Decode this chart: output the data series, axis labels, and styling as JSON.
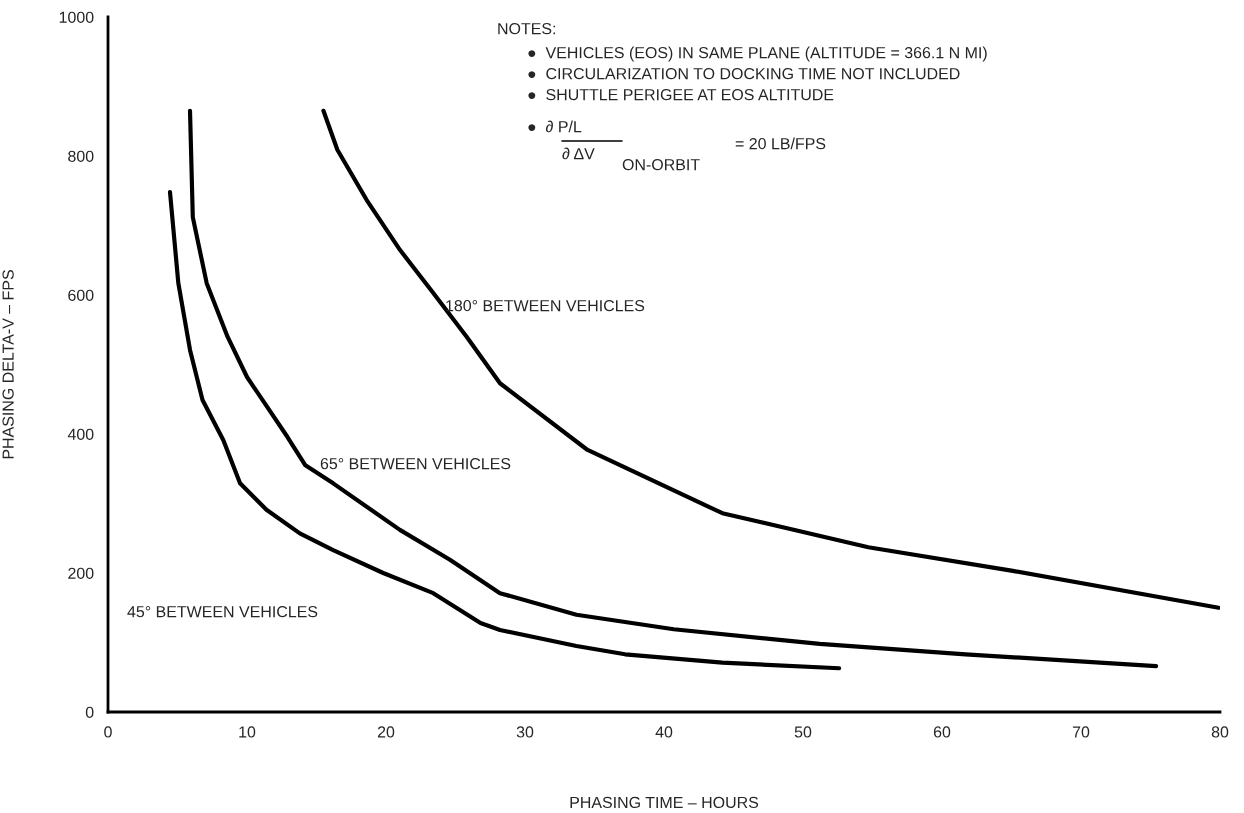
{
  "chart_data": {
    "type": "line",
    "xlabel": "PHASING TIME – HOURS",
    "ylabel": "PHASING DELTA-V – FPS",
    "xlim": [
      0,
      80
    ],
    "ylim": [
      0,
      1000
    ],
    "xticks": [
      0,
      10,
      20,
      30,
      40,
      50,
      60,
      70,
      80
    ],
    "yticks": [
      0,
      200,
      400,
      600,
      800,
      1000
    ],
    "grid": false,
    "series": [
      {
        "color": "#000000",
        "x": [
          4.46,
          5.06,
          5.9,
          6.8,
          8.3,
          9.5,
          11.4,
          13.8,
          16.2,
          19.8,
          23.4,
          26.8,
          28.2,
          33.7,
          37.2,
          44.2,
          52.6
        ],
        "values": [
          748,
          617,
          521,
          449,
          391,
          329,
          291,
          257,
          233,
          200,
          171,
          128,
          118,
          95,
          83,
          71,
          63
        ]
      },
      {
        "color": "#000000",
        "x": [
          5.9,
          6.1,
          7.1,
          8.6,
          10.0,
          12.9,
          14.2,
          16.2,
          21.0,
          24.6,
          28.2,
          33.7,
          40.7,
          51.2,
          61.7,
          75.4
        ],
        "values": [
          865,
          712,
          617,
          540,
          482,
          396,
          355,
          329,
          262,
          219,
          171,
          140,
          119,
          98,
          83,
          66
        ]
      },
      {
        "color": "#000000",
        "x": [
          15.5,
          16.5,
          18.6,
          21.0,
          23.4,
          25.8,
          28.2,
          34.5,
          44.2,
          54.7,
          65.1,
          79.9
        ],
        "values": [
          865,
          809,
          737,
          665,
          603,
          540,
          473,
          377,
          286,
          237,
          203,
          150
        ]
      }
    ],
    "annotations": [
      "45° BETWEEN VEHICLES",
      "65° BETWEEN VEHICLES",
      "180° BETWEEN VEHICLES",
      "NOTES:",
      "●  VEHICLES (EOS) IN SAME PLANE (ALTITUDE = 366.1 N MI)",
      "●  CIRCULARIZATION TO DOCKING TIME NOT INCLUDED",
      "●  SHUTTLE PERIGEE AT EOS ALTITUDE",
      "●  ∂ P/L",
      "∂ ΔV",
      "ON-ORBIT",
      "= 20 LB/FPS"
    ]
  }
}
